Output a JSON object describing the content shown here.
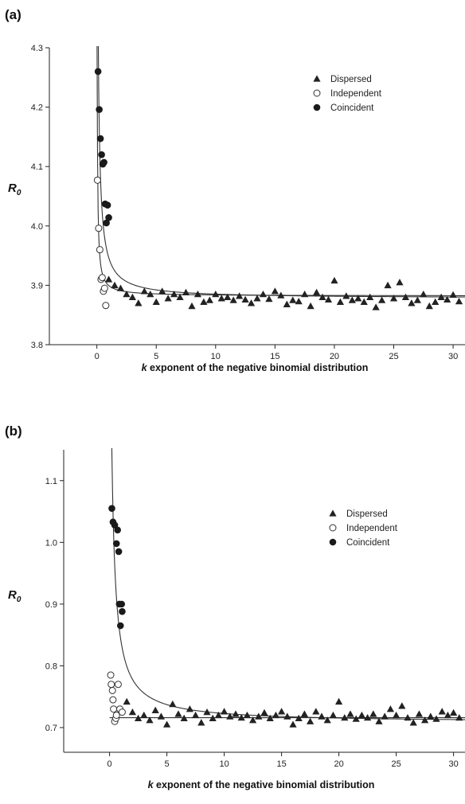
{
  "chart_data": [
    {
      "panel": "(a)",
      "type": "scatter",
      "xlabel_italic": "k",
      "xlabel_rest": " exponent of the negative binomial distribution",
      "ylabel": "R",
      "ylabel_sub": "0",
      "xlim": [
        -4,
        31
      ],
      "ylim": [
        3.8,
        4.3
      ],
      "xticks": [
        0,
        5,
        10,
        15,
        20,
        25,
        30
      ],
      "xtick_labels": [
        "0",
        "5",
        "10",
        "15",
        "20",
        "25",
        "30"
      ],
      "yticks": [
        3.8,
        3.9,
        4.0,
        4.1,
        4.2,
        4.3
      ],
      "ytick_labels": [
        "3.8",
        "3.9",
        "4.0",
        "4.1",
        "4.2",
        "4.3"
      ],
      "legend_position": "top-right",
      "series": [
        {
          "name": "Dispersed",
          "marker": "triangle",
          "x": [
            1.0,
            1.5,
            2.0,
            2.5,
            3.0,
            3.5,
            4.0,
            4.5,
            5.0,
            5.5,
            6.0,
            6.5,
            7.0,
            7.5,
            8.0,
            8.5,
            9.0,
            9.5,
            10.0,
            10.5,
            11.0,
            11.5,
            12.0,
            12.5,
            13.0,
            13.5,
            14.0,
            14.5,
            15.0,
            15.5,
            16.0,
            16.5,
            17.0,
            17.5,
            18.0,
            18.5,
            19.0,
            19.5,
            20.0,
            20.5,
            21.0,
            21.5,
            22.0,
            22.5,
            23.0,
            23.5,
            24.0,
            24.5,
            25.0,
            25.5,
            26.0,
            26.5,
            27.0,
            27.5,
            28.0,
            28.5,
            29.0,
            29.5,
            30.0,
            30.5
          ],
          "y": [
            3.91,
            3.9,
            3.895,
            3.885,
            3.88,
            3.87,
            3.89,
            3.885,
            3.872,
            3.89,
            3.878,
            3.885,
            3.88,
            3.888,
            3.865,
            3.885,
            3.872,
            3.875,
            3.885,
            3.878,
            3.88,
            3.875,
            3.882,
            3.876,
            3.87,
            3.878,
            3.885,
            3.877,
            3.89,
            3.883,
            3.868,
            3.875,
            3.873,
            3.885,
            3.865,
            3.888,
            3.88,
            3.876,
            3.908,
            3.872,
            3.882,
            3.875,
            3.878,
            3.872,
            3.88,
            3.863,
            3.875,
            3.9,
            3.878,
            3.905,
            3.88,
            3.87,
            3.875,
            3.885,
            3.865,
            3.872,
            3.88,
            3.876,
            3.884,
            3.873
          ]
        },
        {
          "name": "Independent",
          "marker": "open-circle",
          "x": [
            0.05,
            0.15,
            0.25,
            0.35,
            0.45,
            0.55,
            0.65,
            0.75
          ],
          "y": [
            4.077,
            3.996,
            3.96,
            3.91,
            3.913,
            3.89,
            3.895,
            3.866
          ]
        },
        {
          "name": "Coincident",
          "marker": "filled-circle",
          "x": [
            0.1,
            0.2,
            0.3,
            0.4,
            0.5,
            0.6,
            0.7,
            0.8,
            0.9,
            1.0
          ],
          "y": [
            4.26,
            4.196,
            4.147,
            4.12,
            4.104,
            4.107,
            4.037,
            4.005,
            4.035,
            4.014
          ]
        }
      ],
      "fit_curves": [
        {
          "asymptote": 3.878,
          "scale": 0.072,
          "offset": 0.05
        },
        {
          "asymptote": 3.882,
          "scale": 0.018,
          "offset": 0.02
        }
      ]
    },
    {
      "panel": "(b)",
      "type": "scatter",
      "xlabel_italic": "k",
      "xlabel_rest": " exponent of the negative binomial distribution",
      "ylabel": "R",
      "ylabel_sub": "0",
      "xlim": [
        -4,
        31
      ],
      "ylim": [
        0.66,
        1.15
      ],
      "xticks": [
        0,
        5,
        10,
        15,
        20,
        25,
        30
      ],
      "xtick_labels": [
        "0",
        "5",
        "10",
        "15",
        "20",
        "25",
        "30"
      ],
      "yticks": [
        0.7,
        0.8,
        0.9,
        1.0,
        1.1
      ],
      "ytick_labels": [
        "0.7",
        "0.8",
        "0.9",
        "1.0",
        "1.1"
      ],
      "legend_position": "top-right",
      "series": [
        {
          "name": "Dispersed",
          "marker": "triangle",
          "x": [
            1.0,
            1.5,
            2.0,
            2.5,
            3.0,
            3.5,
            4.0,
            4.5,
            5.0,
            5.5,
            6.0,
            6.5,
            7.0,
            7.5,
            8.0,
            8.5,
            9.0,
            9.5,
            10.0,
            10.5,
            11.0,
            11.5,
            12.0,
            12.5,
            13.0,
            13.5,
            14.0,
            14.5,
            15.0,
            15.5,
            16.0,
            16.5,
            17.0,
            17.5,
            18.0,
            18.5,
            19.0,
            19.5,
            20.0,
            20.5,
            21.0,
            21.5,
            22.0,
            22.5,
            23.0,
            23.5,
            24.0,
            24.5,
            25.0,
            25.5,
            26.0,
            26.5,
            27.0,
            27.5,
            28.0,
            28.5,
            29.0,
            29.5,
            30.0,
            30.5
          ],
          "y": [
            0.73,
            0.742,
            0.725,
            0.715,
            0.72,
            0.712,
            0.728,
            0.718,
            0.705,
            0.738,
            0.722,
            0.715,
            0.73,
            0.72,
            0.708,
            0.725,
            0.715,
            0.72,
            0.726,
            0.718,
            0.722,
            0.716,
            0.72,
            0.712,
            0.718,
            0.724,
            0.715,
            0.72,
            0.726,
            0.718,
            0.705,
            0.715,
            0.722,
            0.71,
            0.726,
            0.718,
            0.712,
            0.72,
            0.742,
            0.716,
            0.722,
            0.714,
            0.72,
            0.716,
            0.722,
            0.71,
            0.718,
            0.73,
            0.72,
            0.735,
            0.716,
            0.708,
            0.722,
            0.712,
            0.718,
            0.714,
            0.726,
            0.72,
            0.724,
            0.716
          ]
        },
        {
          "name": "Independent",
          "marker": "open-circle",
          "x": [
            0.1,
            0.15,
            0.25,
            0.3,
            0.35,
            0.45,
            0.55,
            0.6,
            0.75,
            0.9,
            1.1
          ],
          "y": [
            0.785,
            0.77,
            0.76,
            0.745,
            0.73,
            0.71,
            0.715,
            0.72,
            0.77,
            0.73,
            0.725
          ]
        },
        {
          "name": "Coincident",
          "marker": "filled-circle",
          "x": [
            0.2,
            0.3,
            0.45,
            0.6,
            0.7,
            0.8,
            0.85,
            0.95,
            1.05,
            1.1
          ],
          "y": [
            1.055,
            1.033,
            1.028,
            0.998,
            1.02,
            0.985,
            0.9,
            0.865,
            0.9,
            0.888
          ]
        }
      ],
      "fit_curves": [
        {
          "asymptote": 0.708,
          "scale": 0.15,
          "offset": 0.14
        },
        {
          "asymptote": 0.716,
          "scale": 0.0,
          "offset": 0.1
        }
      ]
    }
  ]
}
